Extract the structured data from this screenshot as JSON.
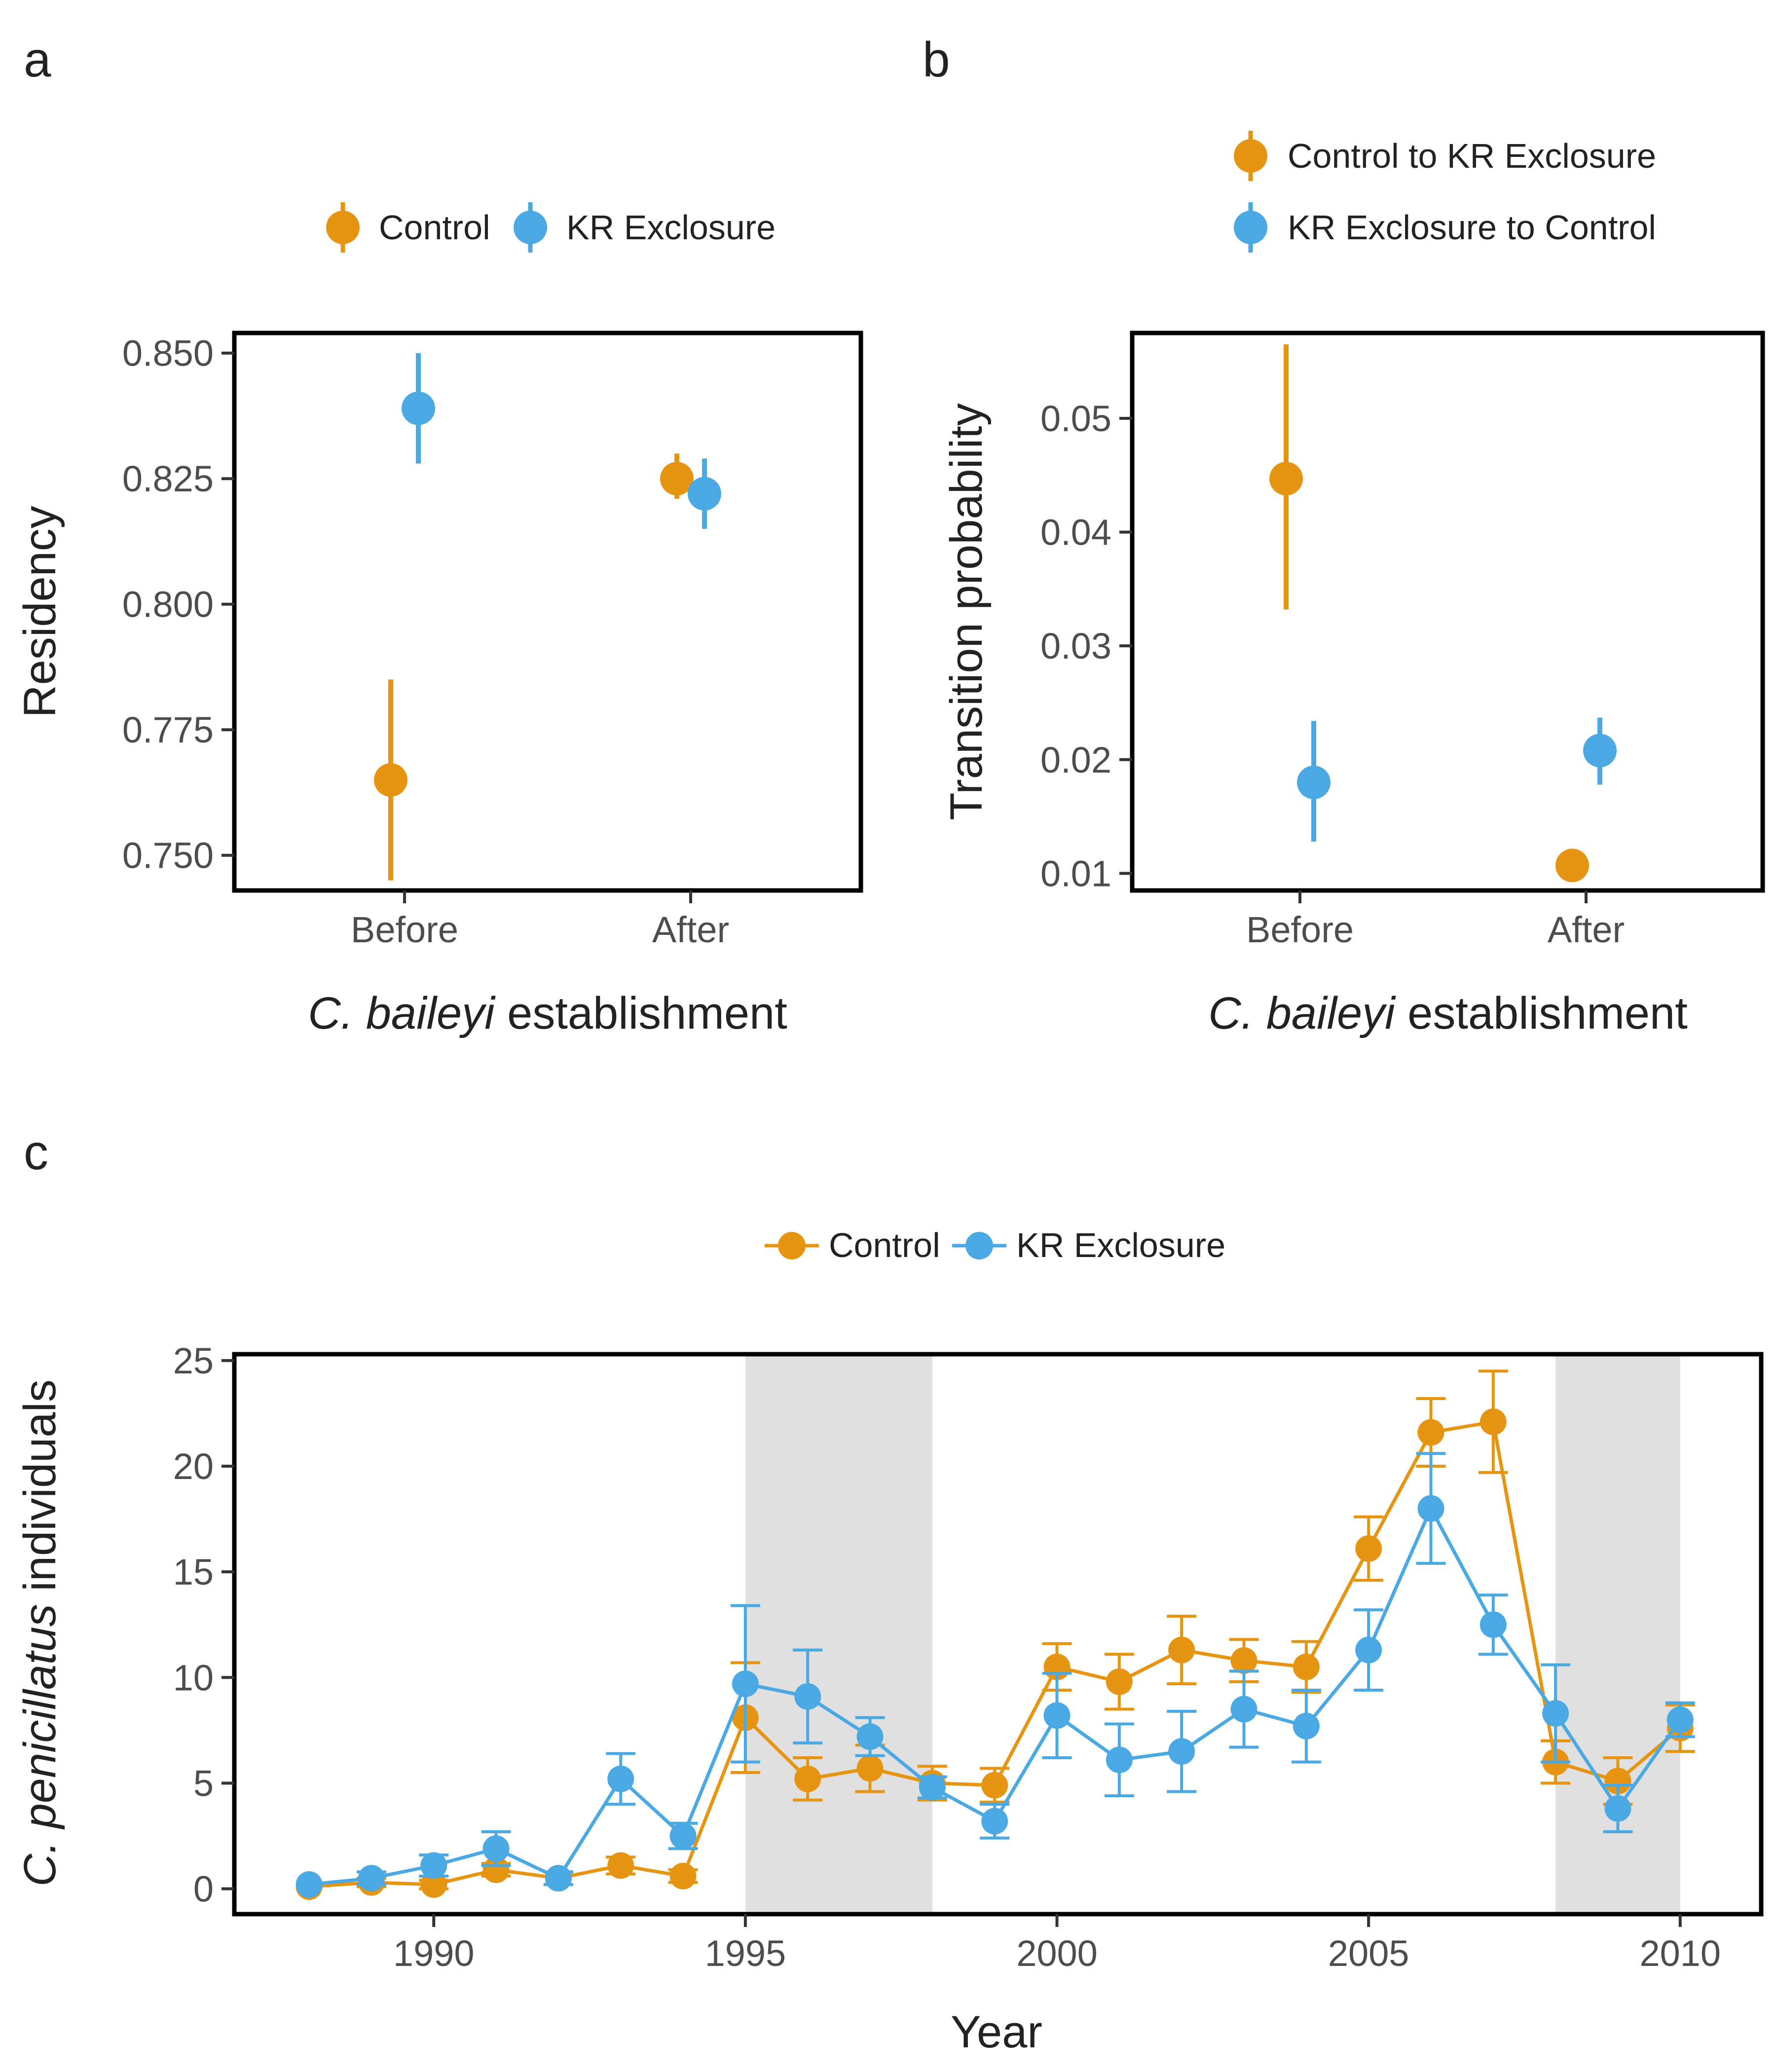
{
  "figure": {
    "colors": {
      "control": "#E69512",
      "exclosure": "#4AA8E3",
      "shade": "#E0E0E0"
    }
  },
  "chart_data": [
    {
      "panel": "a",
      "type": "scatter",
      "subtype": "point-range",
      "legend": {
        "placement": "top",
        "entries": [
          "Control",
          "KR Exclosure"
        ]
      },
      "ylabel": "Residency",
      "xlabel_italic": "C. baileyi",
      "xlabel_rest": " establishment",
      "categories": [
        "Before",
        "After"
      ],
      "ylim": [
        0.743,
        0.854
      ],
      "yticks": [
        0.75,
        0.775,
        0.8,
        0.825,
        0.85
      ],
      "ytick_labels": [
        "0.750",
        "0.775",
        "0.800",
        "0.825",
        "0.850"
      ],
      "grid": false,
      "series": [
        {
          "name": "Control",
          "color": "#E69512",
          "values": [
            0.765,
            0.825
          ],
          "lower": [
            0.745,
            0.821
          ],
          "upper": [
            0.785,
            0.83
          ]
        },
        {
          "name": "KR Exclosure",
          "color": "#4AA8E3",
          "values": [
            0.839,
            0.822
          ],
          "lower": [
            0.828,
            0.815
          ],
          "upper": [
            0.85,
            0.829
          ]
        }
      ]
    },
    {
      "panel": "b",
      "type": "scatter",
      "subtype": "point-range",
      "legend": {
        "placement": "top",
        "entries": [
          "Control to KR Exclosure",
          "KR Exclosure to Control"
        ]
      },
      "ylabel": "Transition probability",
      "xlabel_italic": "C. baileyi",
      "xlabel_rest": " establishment",
      "categories": [
        "Before",
        "After"
      ],
      "ylim": [
        0.0085,
        0.0575
      ],
      "yticks": [
        0.01,
        0.02,
        0.03,
        0.04,
        0.05
      ],
      "ytick_labels": [
        "0.01",
        "0.02",
        "0.03",
        "0.04",
        "0.05"
      ],
      "grid": false,
      "series": [
        {
          "name": "Control to KR Exclosure",
          "color": "#E69512",
          "values": [
            0.0447,
            0.0107
          ],
          "lower": [
            0.0332,
            0.0107
          ],
          "upper": [
            0.0565,
            0.0107
          ]
        },
        {
          "name": "KR Exclosure to Control",
          "color": "#4AA8E3",
          "values": [
            0.018,
            0.0208
          ],
          "lower": [
            0.0128,
            0.0178
          ],
          "upper": [
            0.0234,
            0.0237
          ]
        }
      ]
    },
    {
      "panel": "c",
      "type": "line",
      "legend": {
        "placement": "top",
        "entries": [
          "Control",
          "KR Exclosure"
        ]
      },
      "ylabel_italic": "C. penicillatus",
      "ylabel_rest": " individuals",
      "xlabel": "Year",
      "xlim": [
        1986.8,
        2011.3
      ],
      "ylim": [
        -1.2,
        25.3
      ],
      "xticks": [
        1990,
        1995,
        2000,
        2005,
        2010
      ],
      "xtick_labels": [
        "1990",
        "1995",
        "2000",
        "2005",
        "2010"
      ],
      "yticks": [
        0,
        5,
        10,
        15,
        20,
        25
      ],
      "ytick_labels": [
        "0",
        "5",
        "10",
        "15",
        "20",
        "25"
      ],
      "grid": false,
      "shaded_periods": [
        [
          1995,
          1998
        ],
        [
          2008,
          2010
        ]
      ],
      "x": [
        1988,
        1989,
        1990,
        1991,
        1992,
        1993,
        1994,
        1995,
        1996,
        1997,
        1998,
        1999,
        2000,
        2001,
        2002,
        2003,
        2004,
        2005,
        2006,
        2007,
        2008,
        2009,
        2010
      ],
      "series": [
        {
          "name": "Control",
          "color": "#E69512",
          "values": [
            0.1,
            0.3,
            0.2,
            0.9,
            0.5,
            1.1,
            0.6,
            8.1,
            5.2,
            5.7,
            5.0,
            4.9,
            10.5,
            9.8,
            11.3,
            10.8,
            10.5,
            16.1,
            21.6,
            22.1,
            6.0,
            5.1,
            7.6
          ],
          "error": [
            0.0,
            0.2,
            0.2,
            0.3,
            0.3,
            0.4,
            0.3,
            2.6,
            1.0,
            1.1,
            0.8,
            0.8,
            1.1,
            1.3,
            1.6,
            1.0,
            1.2,
            1.5,
            1.6,
            2.4,
            1.0,
            1.1,
            1.1
          ]
        },
        {
          "name": "KR Exclosure",
          "color": "#4AA8E3",
          "values": [
            0.2,
            0.5,
            1.1,
            1.9,
            0.5,
            5.2,
            2.5,
            9.7,
            9.1,
            7.2,
            4.8,
            3.2,
            8.2,
            6.1,
            6.5,
            8.5,
            7.7,
            11.3,
            18.0,
            12.5,
            8.3,
            3.8,
            8.0
          ],
          "error": [
            0.0,
            0.3,
            0.5,
            0.8,
            0.3,
            1.2,
            0.6,
            3.7,
            2.2,
            0.9,
            0.5,
            0.8,
            2.0,
            1.7,
            1.9,
            1.8,
            1.7,
            1.9,
            2.6,
            1.4,
            2.3,
            1.1,
            0.8
          ]
        }
      ]
    }
  ]
}
